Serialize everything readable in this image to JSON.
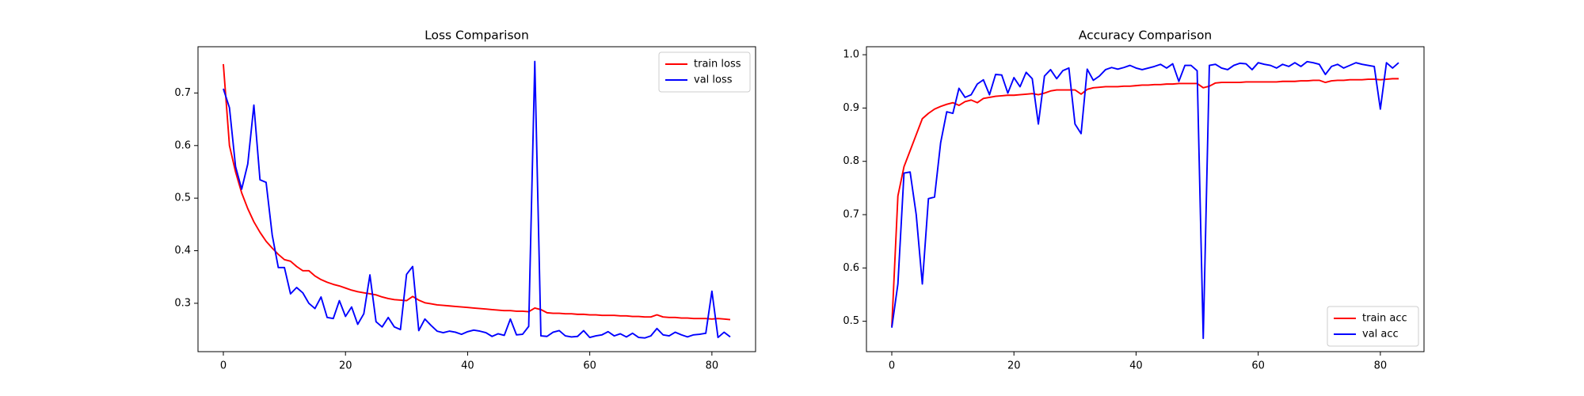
{
  "chart_data": [
    {
      "type": "line",
      "title": "Loss Comparison",
      "legend": "upper right",
      "grid": false,
      "x": [
        0,
        1,
        2,
        3,
        4,
        5,
        6,
        7,
        8,
        9,
        10,
        11,
        12,
        13,
        14,
        15,
        16,
        17,
        18,
        19,
        20,
        21,
        22,
        23,
        24,
        25,
        26,
        27,
        28,
        29,
        30,
        31,
        32,
        33,
        34,
        35,
        36,
        37,
        38,
        39,
        40,
        41,
        42,
        43,
        44,
        45,
        46,
        47,
        48,
        49,
        50,
        51,
        52,
        53,
        54,
        55,
        56,
        57,
        58,
        59,
        60,
        61,
        62,
        63,
        64,
        65,
        66,
        67,
        68,
        69,
        70,
        71,
        72,
        73,
        74,
        75,
        76,
        77,
        78,
        79,
        80,
        81,
        82,
        83
      ],
      "xlim": [
        -4.15,
        87.15
      ],
      "xticks": [
        0,
        20,
        40,
        60,
        80
      ],
      "ylim": [
        0.208,
        0.788
      ],
      "yticks": [
        0.3,
        0.4,
        0.5,
        0.6,
        0.7
      ],
      "series": [
        {
          "name": "train loss",
          "color": "#ff0000",
          "values": [
            0.755,
            0.6,
            0.55,
            0.51,
            0.48,
            0.455,
            0.435,
            0.418,
            0.405,
            0.393,
            0.383,
            0.38,
            0.37,
            0.362,
            0.362,
            0.352,
            0.345,
            0.34,
            0.336,
            0.333,
            0.329,
            0.325,
            0.322,
            0.32,
            0.318,
            0.316,
            0.312,
            0.309,
            0.307,
            0.306,
            0.305,
            0.313,
            0.306,
            0.301,
            0.299,
            0.297,
            0.296,
            0.295,
            0.294,
            0.293,
            0.292,
            0.291,
            0.29,
            0.289,
            0.288,
            0.287,
            0.286,
            0.286,
            0.285,
            0.285,
            0.284,
            0.291,
            0.288,
            0.282,
            0.281,
            0.281,
            0.28,
            0.28,
            0.279,
            0.279,
            0.278,
            0.278,
            0.277,
            0.277,
            0.277,
            0.276,
            0.276,
            0.275,
            0.275,
            0.274,
            0.274,
            0.278,
            0.274,
            0.273,
            0.273,
            0.272,
            0.272,
            0.271,
            0.271,
            0.271,
            0.27,
            0.271,
            0.27,
            0.269
          ]
        },
        {
          "name": "val loss",
          "color": "#0000ff",
          "values": [
            0.708,
            0.672,
            0.56,
            0.517,
            0.565,
            0.677,
            0.535,
            0.53,
            0.43,
            0.368,
            0.368,
            0.318,
            0.33,
            0.32,
            0.3,
            0.29,
            0.312,
            0.273,
            0.271,
            0.305,
            0.275,
            0.293,
            0.26,
            0.28,
            0.354,
            0.265,
            0.255,
            0.273,
            0.255,
            0.25,
            0.355,
            0.37,
            0.248,
            0.27,
            0.258,
            0.247,
            0.244,
            0.247,
            0.245,
            0.241,
            0.246,
            0.249,
            0.247,
            0.244,
            0.237,
            0.242,
            0.239,
            0.27,
            0.24,
            0.241,
            0.256,
            0.76,
            0.238,
            0.237,
            0.245,
            0.248,
            0.238,
            0.236,
            0.237,
            0.248,
            0.235,
            0.238,
            0.24,
            0.246,
            0.238,
            0.242,
            0.236,
            0.243,
            0.235,
            0.234,
            0.238,
            0.252,
            0.24,
            0.238,
            0.245,
            0.24,
            0.236,
            0.24,
            0.241,
            0.243,
            0.323,
            0.235,
            0.245,
            0.236
          ]
        }
      ]
    },
    {
      "type": "line",
      "title": "Accuracy Comparison",
      "legend": "lower right",
      "grid": false,
      "x": [
        0,
        1,
        2,
        3,
        4,
        5,
        6,
        7,
        8,
        9,
        10,
        11,
        12,
        13,
        14,
        15,
        16,
        17,
        18,
        19,
        20,
        21,
        22,
        23,
        24,
        25,
        26,
        27,
        28,
        29,
        30,
        31,
        32,
        33,
        34,
        35,
        36,
        37,
        38,
        39,
        40,
        41,
        42,
        43,
        44,
        45,
        46,
        47,
        48,
        49,
        50,
        51,
        52,
        53,
        54,
        55,
        56,
        57,
        58,
        59,
        60,
        61,
        62,
        63,
        64,
        65,
        66,
        67,
        68,
        69,
        70,
        71,
        72,
        73,
        74,
        75,
        76,
        77,
        78,
        79,
        80,
        81,
        82,
        83
      ],
      "xlim": [
        -4.15,
        87.15
      ],
      "xticks": [
        0,
        20,
        40,
        60,
        80
      ],
      "ylim": [
        0.443,
        1.015
      ],
      "yticks": [
        0.5,
        0.6,
        0.7,
        0.8,
        0.9,
        {
          "value": 1,
          "label": "1.0"
        }
      ],
      "series": [
        {
          "name": "train acc",
          "color": "#ff0000",
          "values": [
            0.49,
            0.735,
            0.79,
            0.82,
            0.85,
            0.88,
            0.89,
            0.898,
            0.903,
            0.907,
            0.91,
            0.905,
            0.912,
            0.915,
            0.91,
            0.918,
            0.92,
            0.922,
            0.923,
            0.924,
            0.924,
            0.925,
            0.926,
            0.927,
            0.925,
            0.928,
            0.932,
            0.934,
            0.934,
            0.934,
            0.934,
            0.926,
            0.935,
            0.938,
            0.939,
            0.94,
            0.94,
            0.94,
            0.941,
            0.941,
            0.942,
            0.943,
            0.943,
            0.944,
            0.944,
            0.945,
            0.945,
            0.946,
            0.946,
            0.946,
            0.946,
            0.938,
            0.941,
            0.947,
            0.948,
            0.948,
            0.948,
            0.948,
            0.949,
            0.949,
            0.949,
            0.949,
            0.949,
            0.949,
            0.95,
            0.95,
            0.95,
            0.951,
            0.951,
            0.952,
            0.952,
            0.948,
            0.951,
            0.952,
            0.952,
            0.953,
            0.953,
            0.953,
            0.954,
            0.954,
            0.953,
            0.954,
            0.955,
            0.955
          ]
        },
        {
          "name": "val acc",
          "color": "#0000ff",
          "values": [
            0.488,
            0.57,
            0.778,
            0.78,
            0.7,
            0.57,
            0.73,
            0.733,
            0.835,
            0.893,
            0.89,
            0.937,
            0.92,
            0.925,
            0.945,
            0.953,
            0.925,
            0.963,
            0.962,
            0.928,
            0.957,
            0.94,
            0.967,
            0.955,
            0.87,
            0.96,
            0.972,
            0.955,
            0.97,
            0.975,
            0.87,
            0.852,
            0.973,
            0.952,
            0.96,
            0.972,
            0.976,
            0.973,
            0.976,
            0.98,
            0.975,
            0.972,
            0.975,
            0.978,
            0.982,
            0.975,
            0.983,
            0.95,
            0.98,
            0.98,
            0.97,
            0.468,
            0.98,
            0.982,
            0.975,
            0.972,
            0.98,
            0.984,
            0.983,
            0.972,
            0.985,
            0.982,
            0.98,
            0.975,
            0.982,
            0.978,
            0.985,
            0.978,
            0.987,
            0.985,
            0.982,
            0.963,
            0.978,
            0.982,
            0.975,
            0.98,
            0.985,
            0.982,
            0.98,
            0.978,
            0.898,
            0.985,
            0.975,
            0.985
          ]
        }
      ]
    }
  ]
}
